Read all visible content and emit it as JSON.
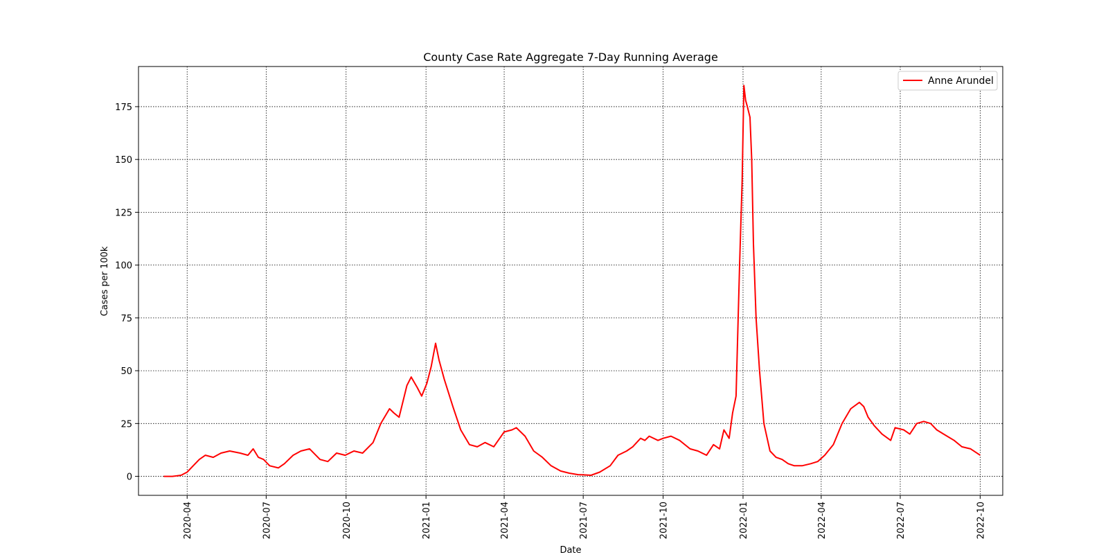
{
  "chart_data": {
    "type": "line",
    "title": "County Case Rate Aggregate 7-Day Running Average",
    "xlabel": "Date",
    "ylabel": "Cases per 100k",
    "xlim": [
      "2020-02-05",
      "2022-10-27"
    ],
    "ylim": [
      -9,
      194
    ],
    "x_ticks": [
      "2020-04",
      "2020-07",
      "2020-10",
      "2021-01",
      "2021-04",
      "2021-07",
      "2021-10",
      "2022-01",
      "2022-04",
      "2022-07",
      "2022-10"
    ],
    "y_ticks": [
      0,
      25,
      50,
      75,
      100,
      125,
      150,
      175
    ],
    "grid": true,
    "legend_position": "top-right",
    "series": [
      {
        "name": "Anne Arundel",
        "color": "#ff0000",
        "x": [
          "2020-03-05",
          "2020-03-15",
          "2020-03-25",
          "2020-04-01",
          "2020-04-08",
          "2020-04-15",
          "2020-04-22",
          "2020-05-01",
          "2020-05-10",
          "2020-05-20",
          "2020-06-01",
          "2020-06-10",
          "2020-06-16",
          "2020-06-22",
          "2020-06-28",
          "2020-07-05",
          "2020-07-15",
          "2020-07-22",
          "2020-08-01",
          "2020-08-10",
          "2020-08-20",
          "2020-09-01",
          "2020-09-10",
          "2020-09-15",
          "2020-09-20",
          "2020-09-30",
          "2020-10-10",
          "2020-10-20",
          "2020-11-01",
          "2020-11-10",
          "2020-11-20",
          "2020-11-25",
          "2020-12-01",
          "2020-12-10",
          "2020-12-15",
          "2020-12-22",
          "2020-12-27",
          "2021-01-02",
          "2021-01-07",
          "2021-01-12",
          "2021-01-16",
          "2021-01-22",
          "2021-02-01",
          "2021-02-10",
          "2021-02-20",
          "2021-03-01",
          "2021-03-10",
          "2021-03-20",
          "2021-04-01",
          "2021-04-10",
          "2021-04-15",
          "2021-04-25",
          "2021-05-05",
          "2021-05-15",
          "2021-05-25",
          "2021-06-05",
          "2021-06-15",
          "2021-06-25",
          "2021-07-01",
          "2021-07-10",
          "2021-07-20",
          "2021-08-01",
          "2021-08-10",
          "2021-08-20",
          "2021-08-27",
          "2021-09-05",
          "2021-09-10",
          "2021-09-15",
          "2021-09-25",
          "2021-10-01",
          "2021-10-10",
          "2021-10-20",
          "2021-11-01",
          "2021-11-10",
          "2021-11-20",
          "2021-11-28",
          "2021-12-05",
          "2021-12-10",
          "2021-12-16",
          "2021-12-20",
          "2021-12-24",
          "2021-12-28",
          "2021-12-31",
          "2022-01-02",
          "2022-01-04",
          "2022-01-06",
          "2022-01-09",
          "2022-01-11",
          "2022-01-13",
          "2022-01-16",
          "2022-01-20",
          "2022-01-25",
          "2022-02-01",
          "2022-02-08",
          "2022-02-15",
          "2022-02-22",
          "2022-03-01",
          "2022-03-10",
          "2022-03-20",
          "2022-03-28",
          "2022-04-05",
          "2022-04-15",
          "2022-04-25",
          "2022-05-05",
          "2022-05-15",
          "2022-05-20",
          "2022-05-25",
          "2022-06-01",
          "2022-06-10",
          "2022-06-20",
          "2022-06-25",
          "2022-07-05",
          "2022-07-12",
          "2022-07-20",
          "2022-07-28",
          "2022-08-05",
          "2022-08-12",
          "2022-08-20",
          "2022-09-01",
          "2022-09-10",
          "2022-09-20",
          "2022-10-01"
        ],
        "y": [
          0,
          0,
          0.5,
          2,
          5,
          8,
          10,
          9,
          11,
          12,
          11,
          10,
          13,
          9,
          8,
          5,
          4,
          6,
          10,
          12,
          13,
          8,
          7,
          9,
          11,
          10,
          12,
          11,
          16,
          25,
          32,
          30,
          28,
          43,
          47,
          42,
          38,
          44,
          52,
          63,
          55,
          46,
          33,
          22,
          15,
          14,
          16,
          14,
          21,
          22,
          23,
          19,
          12,
          9,
          5,
          2.5,
          1.5,
          0.8,
          0.7,
          0.5,
          2,
          5,
          10,
          12,
          14,
          18,
          17,
          19,
          17,
          18,
          19,
          17,
          13,
          12,
          10,
          15,
          13,
          22,
          18,
          30,
          38,
          100,
          140,
          185,
          178,
          175,
          170,
          150,
          110,
          75,
          50,
          25,
          12,
          9,
          8,
          6,
          5,
          5,
          6,
          7,
          10,
          15,
          25,
          32,
          35,
          33,
          28,
          24,
          20,
          17,
          23,
          22,
          20,
          25,
          26,
          25,
          22,
          20,
          17,
          14,
          13,
          10
        ]
      }
    ]
  }
}
